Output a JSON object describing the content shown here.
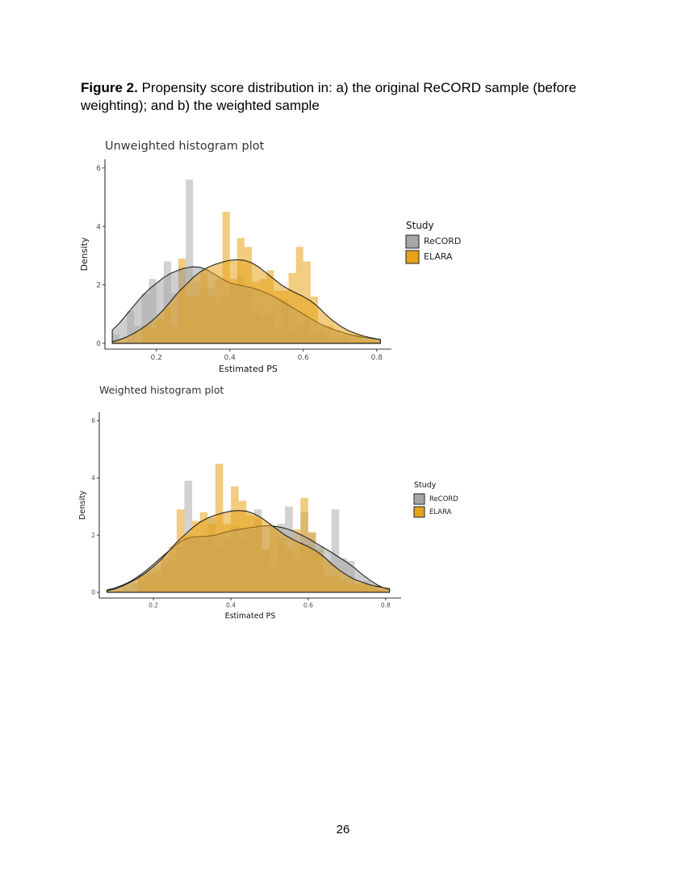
{
  "figure": {
    "label": "Figure 2.",
    "text": " Propensity score distribution in: a) the original ReCORD sample (before weighting); and b) the weighted sample"
  },
  "page_number": "26",
  "colors": {
    "record": "#a6a6a6",
    "elara": "#e5a31a",
    "axis": "#333333",
    "tick": "#4d4d4d"
  },
  "chart_data": [
    {
      "type": "histogram",
      "title": "Unweighted histogram plot",
      "xlabel": "Estimated PS",
      "ylabel": "Density",
      "xlim": [
        0.06,
        0.84
      ],
      "ylim": [
        -0.2,
        6.3
      ],
      "xticks": [
        0.2,
        0.4,
        0.6,
        0.8
      ],
      "xtick_labels": [
        "0.2",
        "0.4",
        "0.6",
        "0.8"
      ],
      "yticks": [
        0,
        2,
        4,
        6
      ],
      "ytick_labels": [
        "0",
        "2",
        "4",
        "6"
      ],
      "legend": {
        "title": "Study",
        "entries": [
          "ReCORD",
          "ELARA"
        ],
        "position": "right"
      },
      "bins": [
        0.08,
        0.1,
        0.12,
        0.14,
        0.16,
        0.18,
        0.2,
        0.22,
        0.24,
        0.26,
        0.28,
        0.3,
        0.32,
        0.34,
        0.36,
        0.38,
        0.4,
        0.42,
        0.44,
        0.46,
        0.48,
        0.5,
        0.52,
        0.54,
        0.56,
        0.58,
        0.6,
        0.62,
        0.64,
        0.66,
        0.68,
        0.7,
        0.72,
        0.74,
        0.76,
        0.78,
        0.8,
        0.82
      ],
      "series": [
        {
          "name": "ReCORD",
          "hist": [
            0.3,
            0.0,
            1.1,
            0.6,
            1.7,
            2.2,
            1.0,
            2.8,
            1.7,
            2.6,
            5.6,
            2.1,
            1.9,
            1.9,
            1.3,
            1.6,
            2.0,
            2.3,
            1.8,
            1.1,
            0.9,
            1.0,
            0.5,
            1.5,
            0.4,
            0.6,
            0.8,
            0.3,
            0.4,
            0.2,
            0.1,
            0.2,
            0.0,
            0.0,
            0.0,
            0.0,
            0.0
          ],
          "density_x": [
            0.08,
            0.1,
            0.12,
            0.14,
            0.16,
            0.18,
            0.2,
            0.22,
            0.24,
            0.26,
            0.28,
            0.3,
            0.32,
            0.34,
            0.36,
            0.38,
            0.4,
            0.42,
            0.44,
            0.46,
            0.48,
            0.5,
            0.52,
            0.54,
            0.56,
            0.58,
            0.6,
            0.62,
            0.64,
            0.66,
            0.68,
            0.7,
            0.72,
            0.74,
            0.76,
            0.78,
            0.8,
            0.81
          ],
          "density_y": [
            0.45,
            0.7,
            1.0,
            1.3,
            1.6,
            1.85,
            2.05,
            2.25,
            2.4,
            2.5,
            2.58,
            2.62,
            2.6,
            2.5,
            2.35,
            2.2,
            2.07,
            2.0,
            1.95,
            1.9,
            1.82,
            1.72,
            1.6,
            1.45,
            1.3,
            1.15,
            1.0,
            0.85,
            0.7,
            0.58,
            0.48,
            0.4,
            0.32,
            0.26,
            0.21,
            0.17,
            0.14,
            0.13
          ]
        },
        {
          "name": "ELARA",
          "hist": [
            0.0,
            0.0,
            0.0,
            0.0,
            0.6,
            0.5,
            0.8,
            1.2,
            0.6,
            2.9,
            1.6,
            1.6,
            2.5,
            1.6,
            2.2,
            4.5,
            2.2,
            3.6,
            3.3,
            2.1,
            2.2,
            2.5,
            1.8,
            1.8,
            2.4,
            3.3,
            2.8,
            1.6,
            0.6,
            0.6,
            0.4,
            0.3,
            0.3,
            0.3,
            0.1,
            0.1,
            0.0
          ],
          "density_x": [
            0.08,
            0.1,
            0.12,
            0.14,
            0.16,
            0.18,
            0.2,
            0.22,
            0.24,
            0.26,
            0.28,
            0.3,
            0.32,
            0.34,
            0.36,
            0.38,
            0.4,
            0.42,
            0.44,
            0.46,
            0.48,
            0.5,
            0.52,
            0.54,
            0.56,
            0.58,
            0.6,
            0.62,
            0.64,
            0.66,
            0.68,
            0.7,
            0.72,
            0.74,
            0.76,
            0.78,
            0.8,
            0.81
          ],
          "density_y": [
            0.05,
            0.12,
            0.22,
            0.35,
            0.5,
            0.68,
            0.9,
            1.15,
            1.45,
            1.75,
            2.0,
            2.25,
            2.45,
            2.6,
            2.7,
            2.78,
            2.84,
            2.86,
            2.84,
            2.75,
            2.6,
            2.4,
            2.2,
            2.0,
            1.85,
            1.72,
            1.6,
            1.45,
            1.25,
            1.0,
            0.78,
            0.6,
            0.45,
            0.35,
            0.26,
            0.2,
            0.15,
            0.13
          ]
        }
      ]
    },
    {
      "type": "histogram",
      "title": "Weighted histogram plot",
      "xlabel": "Estimated PS",
      "ylabel": "Density",
      "xlim": [
        0.06,
        0.84
      ],
      "ylim": [
        -0.2,
        6.3
      ],
      "xticks": [
        0.2,
        0.4,
        0.6,
        0.8
      ],
      "xtick_labels": [
        "0.2",
        "0.4",
        "0.6",
        "0.8"
      ],
      "yticks": [
        0,
        2,
        4,
        6
      ],
      "ytick_labels": [
        "0",
        "2",
        "4",
        "6"
      ],
      "legend": {
        "title": "Study",
        "entries": [
          "ReCORD",
          "ELARA"
        ],
        "position": "right"
      },
      "bins": [
        0.08,
        0.1,
        0.12,
        0.14,
        0.16,
        0.18,
        0.2,
        0.22,
        0.24,
        0.26,
        0.28,
        0.3,
        0.32,
        0.34,
        0.36,
        0.38,
        0.4,
        0.42,
        0.44,
        0.46,
        0.48,
        0.5,
        0.52,
        0.54,
        0.56,
        0.58,
        0.6,
        0.62,
        0.64,
        0.66,
        0.68,
        0.7,
        0.72,
        0.74,
        0.76,
        0.78,
        0.8,
        0.82
      ],
      "series": [
        {
          "name": "ReCORD",
          "hist": [
            0.0,
            0.1,
            0.2,
            0.3,
            0.4,
            0.7,
            0.6,
            1.0,
            1.1,
            1.6,
            3.9,
            1.9,
            1.8,
            2.6,
            1.6,
            1.9,
            2.3,
            1.9,
            2.2,
            2.9,
            1.5,
            0.9,
            2.4,
            3.0,
            1.1,
            2.8,
            2.1,
            1.6,
            1.1,
            2.9,
            1.2,
            1.1,
            0.2,
            0.4,
            0.2,
            0.1,
            0.0
          ],
          "density_x": [
            0.08,
            0.1,
            0.12,
            0.14,
            0.16,
            0.18,
            0.2,
            0.22,
            0.24,
            0.26,
            0.28,
            0.3,
            0.32,
            0.34,
            0.36,
            0.38,
            0.4,
            0.42,
            0.44,
            0.46,
            0.48,
            0.5,
            0.52,
            0.54,
            0.56,
            0.58,
            0.6,
            0.62,
            0.64,
            0.66,
            0.68,
            0.7,
            0.72,
            0.74,
            0.76,
            0.78,
            0.8,
            0.81
          ],
          "density_y": [
            0.08,
            0.15,
            0.25,
            0.38,
            0.55,
            0.75,
            0.98,
            1.22,
            1.45,
            1.68,
            1.85,
            1.93,
            1.95,
            1.96,
            2.0,
            2.08,
            2.15,
            2.2,
            2.24,
            2.28,
            2.32,
            2.33,
            2.3,
            2.24,
            2.15,
            2.02,
            1.88,
            1.72,
            1.56,
            1.4,
            1.22,
            1.05,
            0.85,
            0.62,
            0.42,
            0.25,
            0.12,
            0.08
          ]
        },
        {
          "name": "ELARA",
          "hist": [
            0.0,
            0.0,
            0.0,
            0.0,
            0.6,
            0.6,
            0.8,
            1.2,
            1.6,
            2.9,
            2.0,
            2.5,
            2.8,
            2.4,
            4.5,
            2.4,
            3.7,
            3.2,
            2.7,
            2.6,
            1.5,
            2.3,
            1.9,
            1.5,
            2.2,
            3.3,
            2.1,
            1.5,
            0.6,
            0.6,
            0.4,
            0.3,
            0.3,
            0.3,
            0.2,
            0.1,
            0.0
          ],
          "density_x": [
            0.08,
            0.1,
            0.12,
            0.14,
            0.16,
            0.18,
            0.2,
            0.22,
            0.24,
            0.26,
            0.28,
            0.3,
            0.32,
            0.34,
            0.36,
            0.38,
            0.4,
            0.42,
            0.44,
            0.46,
            0.48,
            0.5,
            0.52,
            0.54,
            0.56,
            0.58,
            0.6,
            0.62,
            0.64,
            0.66,
            0.68,
            0.7,
            0.72,
            0.74,
            0.76,
            0.78,
            0.8,
            0.81
          ],
          "density_y": [
            0.05,
            0.12,
            0.22,
            0.35,
            0.5,
            0.68,
            0.9,
            1.15,
            1.45,
            1.75,
            2.0,
            2.25,
            2.45,
            2.6,
            2.7,
            2.78,
            2.84,
            2.86,
            2.84,
            2.75,
            2.6,
            2.4,
            2.2,
            2.0,
            1.85,
            1.72,
            1.6,
            1.45,
            1.25,
            1.0,
            0.78,
            0.6,
            0.45,
            0.35,
            0.26,
            0.2,
            0.15,
            0.13
          ]
        }
      ]
    }
  ]
}
